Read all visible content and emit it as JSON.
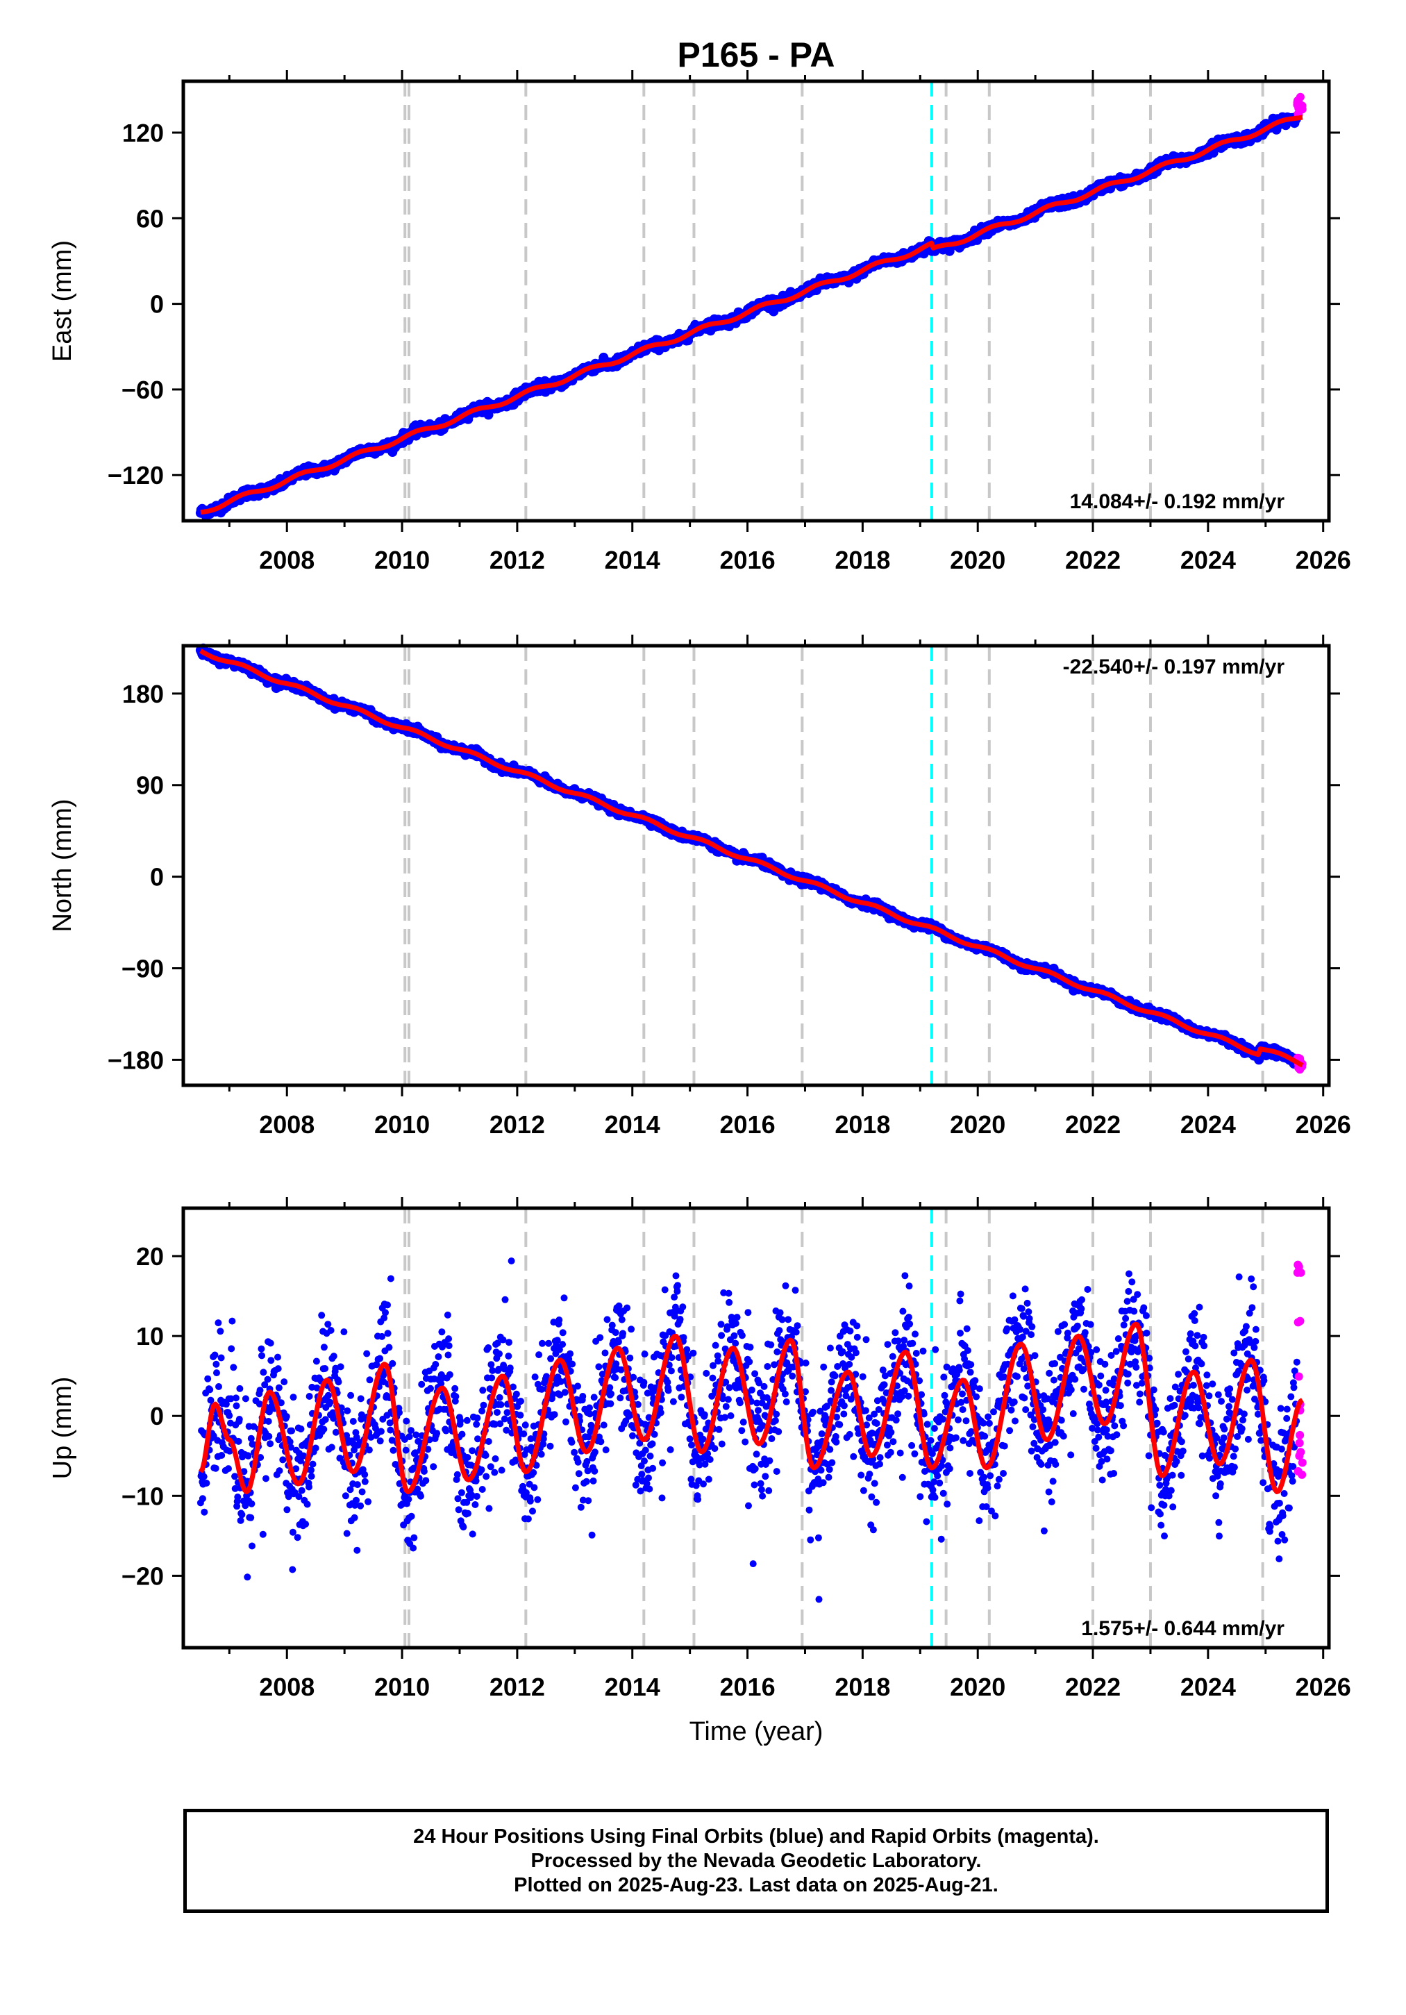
{
  "figure": {
    "title": "P165 - PA",
    "x_axis_label": "Time (year)",
    "caption_lines": [
      "24 Hour Positions Using Final Orbits (blue) and Rapid Orbits (magenta).",
      "Processed by the Nevada Geodetic Laboratory.",
      "Plotted on 2025-Aug-23. Last data on 2025-Aug-21."
    ]
  },
  "colors": {
    "final_orbits": "#0000ff",
    "rapid_orbits": "#ff00ff",
    "model_fit": "#ff0000",
    "gray_event_lines": "#c8c8c8",
    "cyan_event_line": "#00ffff"
  },
  "chart_data": [
    {
      "type": "scatter",
      "name": "east",
      "ylabel": "East (mm)",
      "xlim": [
        2006.2,
        2026.1
      ],
      "ylim": [
        -152,
        156
      ],
      "x_ticks": [
        2008,
        2010,
        2012,
        2014,
        2016,
        2018,
        2020,
        2022,
        2024,
        2026
      ],
      "y_ticks": [
        -120,
        -60,
        0,
        60,
        120
      ],
      "y_tick_labels": [
        "−120",
        "−60",
        "0",
        "60",
        "120"
      ],
      "rate_label": "14.084+/- 0.192 mm/yr",
      "rate_position": "bottom-right",
      "start": {
        "x": 2006.5,
        "y": -146
      },
      "end": {
        "x": 2025.64,
        "y": 136
      },
      "seasonal_amplitude": 1.6,
      "scatter_sd": 1.6,
      "offsets": [
        {
          "x": 2019.2,
          "dy": -4
        }
      ],
      "rapid_points": {
        "x_range": [
          2025.55,
          2025.64
        ],
        "y_range": [
          132,
          146
        ]
      }
    },
    {
      "type": "scatter",
      "name": "north",
      "ylabel": "North (mm)",
      "xlim": [
        2006.2,
        2026.1
      ],
      "ylim": [
        -205,
        227
      ],
      "x_ticks": [
        2008,
        2010,
        2012,
        2014,
        2016,
        2018,
        2020,
        2022,
        2024,
        2026
      ],
      "y_ticks": [
        -180,
        -90,
        0,
        90,
        180
      ],
      "y_tick_labels": [
        "−180",
        "−90",
        "0",
        "90",
        "180"
      ],
      "rate_label": "-22.540+/- 0.197 mm/yr",
      "rate_position": "top-right",
      "start": {
        "x": 2006.5,
        "y": 222
      },
      "end": {
        "x": 2025.64,
        "y": -190
      },
      "seasonal_amplitude": 1.8,
      "scatter_sd": 1.8,
      "offsets": [
        {
          "x": 2024.9,
          "dy": 6
        }
      ],
      "rapid_points": {
        "x_range": [
          2025.55,
          2025.64
        ],
        "y_range": [
          -192,
          -178
        ]
      }
    },
    {
      "type": "scatter",
      "name": "up",
      "ylabel": "Up (mm)",
      "xlim": [
        2006.2,
        2026.1
      ],
      "ylim": [
        -29,
        26
      ],
      "x_ticks": [
        2008,
        2010,
        2012,
        2014,
        2016,
        2018,
        2020,
        2022,
        2024,
        2026
      ],
      "y_ticks": [
        -20,
        -10,
        0,
        10,
        20
      ],
      "y_tick_labels": [
        "−20",
        "−10",
        "0",
        "10",
        "20"
      ],
      "rate_label": "1.575+/- 0.644 mm/yr",
      "rate_position": "bottom-right",
      "fit_curve": {
        "x": [
          2006.5,
          2006.75,
          2007.0,
          2007.3,
          2007.7,
          2008.2,
          2008.7,
          2009.15,
          2009.7,
          2010.1,
          2010.7,
          2011.15,
          2011.75,
          2012.15,
          2012.75,
          2013.2,
          2013.75,
          2014.2,
          2014.75,
          2015.2,
          2015.75,
          2016.2,
          2016.75,
          2017.15,
          2017.75,
          2018.15,
          2018.75,
          2019.2,
          2019.75,
          2020.15,
          2020.75,
          2021.2,
          2021.75,
          2022.2,
          2022.75,
          2023.2,
          2023.75,
          2024.2,
          2024.75,
          2025.2,
          2025.64
        ],
        "y": [
          -7,
          1.5,
          -3,
          -9.5,
          3,
          -8.5,
          4.5,
          -7,
          6.5,
          -9.5,
          3.5,
          -8,
          5,
          -7,
          7,
          -4.5,
          8.5,
          -3,
          10,
          -4.5,
          8.5,
          -3.5,
          9.5,
          -6.5,
          5.5,
          -5,
          8,
          -6.5,
          4.5,
          -6.5,
          9,
          -3,
          10,
          -1,
          11.5,
          -7.5,
          5.5,
          -6,
          7,
          -9.5,
          2
        ]
      },
      "scatter_sd": 4.0,
      "rapid_points": {
        "x_range": [
          2025.55,
          2025.64
        ],
        "y_range": [
          -10,
          20
        ]
      }
    }
  ],
  "event_lines": {
    "gray": [
      2010.05,
      2010.12,
      2012.15,
      2014.2,
      2015.07,
      2016.95,
      2019.45,
      2020.2,
      2022.0,
      2023.0,
      2024.95
    ],
    "cyan": [
      2019.2
    ]
  }
}
